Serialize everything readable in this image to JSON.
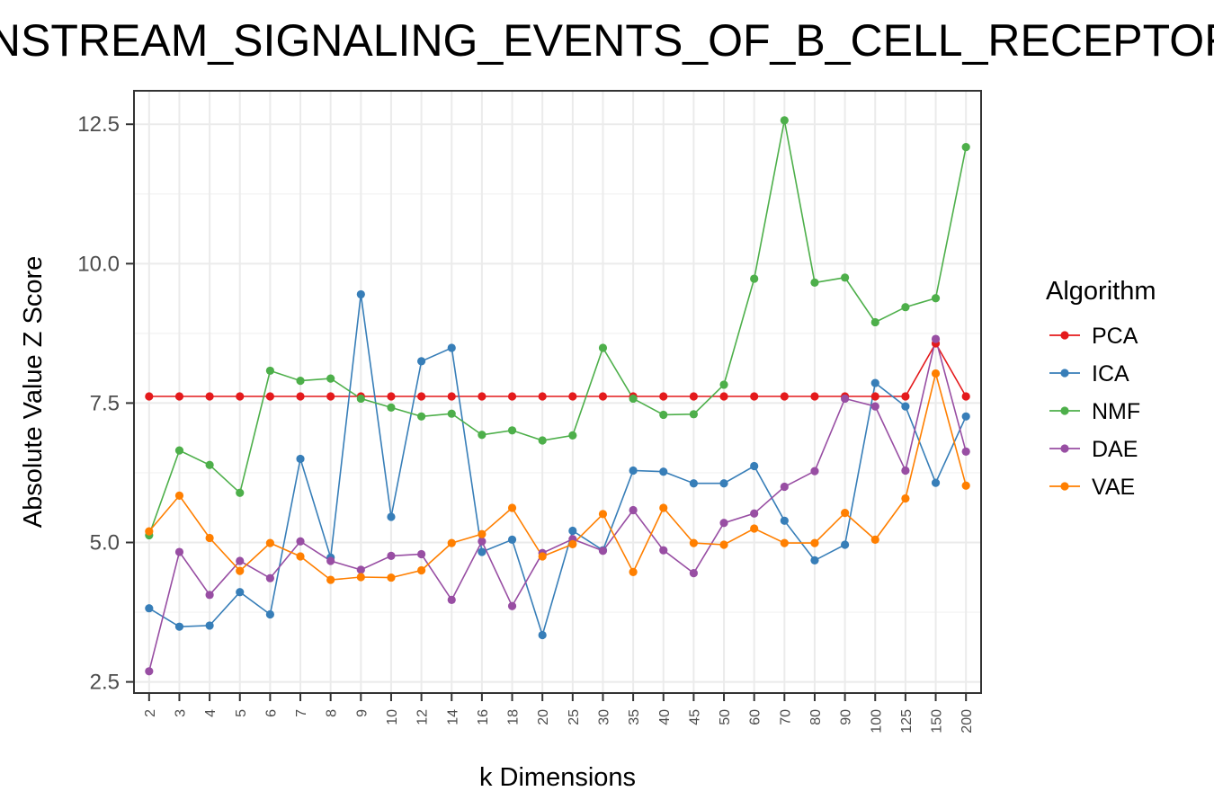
{
  "chart_data": {
    "type": "line",
    "title": "DOWNSTREAM_SIGNALING_EVENTS_OF_B_CELL_RECEPTOR",
    "xlabel": "k Dimensions",
    "ylabel": "Absolute Value Z Score",
    "ylim": [
      2.3,
      13.1
    ],
    "yticks": [
      2.5,
      5.0,
      7.5,
      10.0,
      12.5
    ],
    "ytick_labels": [
      "2.5",
      "5.0",
      "7.5",
      "10.0",
      "12.5"
    ],
    "grid": true,
    "legend_position": "right",
    "legend_title": "Algorithm",
    "categories": [
      "2",
      "3",
      "4",
      "5",
      "6",
      "7",
      "8",
      "9",
      "10",
      "12",
      "14",
      "16",
      "18",
      "20",
      "25",
      "30",
      "35",
      "40",
      "45",
      "50",
      "60",
      "70",
      "80",
      "90",
      "100",
      "125",
      "150",
      "200"
    ],
    "series": [
      {
        "name": "PCA",
        "color": "#e41a1c",
        "values": [
          7.62,
          7.62,
          7.62,
          7.62,
          7.62,
          7.62,
          7.62,
          7.62,
          7.62,
          7.62,
          7.62,
          7.62,
          7.62,
          7.62,
          7.62,
          7.62,
          7.62,
          7.62,
          7.62,
          7.62,
          7.62,
          7.62,
          7.62,
          7.62,
          7.62,
          7.62,
          8.57,
          7.62
        ]
      },
      {
        "name": "ICA",
        "color": "#377eb8",
        "values": [
          3.82,
          3.49,
          3.51,
          4.11,
          3.71,
          6.5,
          4.73,
          9.45,
          5.46,
          8.25,
          8.49,
          4.83,
          5.05,
          3.34,
          5.21,
          4.86,
          6.29,
          6.27,
          6.06,
          6.06,
          6.37,
          5.39,
          4.68,
          4.96,
          7.86,
          7.44,
          6.07,
          7.26
        ]
      },
      {
        "name": "NMF",
        "color": "#4daf4a",
        "values": [
          5.13,
          6.65,
          6.39,
          5.89,
          8.08,
          7.9,
          7.94,
          7.58,
          7.42,
          7.26,
          7.31,
          6.93,
          7.01,
          6.83,
          6.92,
          8.49,
          7.58,
          7.29,
          7.3,
          7.83,
          9.73,
          12.57,
          9.66,
          9.75,
          8.95,
          9.22,
          9.38,
          12.09
        ]
      },
      {
        "name": "DAE",
        "color": "#984ea3",
        "values": [
          2.69,
          4.83,
          4.06,
          4.67,
          4.36,
          5.02,
          4.67,
          4.51,
          4.76,
          4.79,
          3.97,
          5.02,
          3.86,
          4.81,
          5.06,
          4.85,
          5.58,
          4.86,
          4.45,
          5.35,
          5.52,
          6.0,
          6.28,
          7.58,
          7.44,
          6.29,
          8.65,
          6.63
        ]
      },
      {
        "name": "VAE",
        "color": "#ff7f00",
        "values": [
          5.2,
          5.84,
          5.08,
          4.49,
          4.99,
          4.75,
          4.33,
          4.38,
          4.37,
          4.5,
          4.99,
          5.15,
          5.62,
          4.75,
          4.97,
          5.51,
          4.47,
          5.62,
          4.99,
          4.96,
          5.25,
          4.99,
          4.99,
          5.53,
          5.05,
          5.79,
          8.03,
          6.02
        ]
      }
    ]
  }
}
